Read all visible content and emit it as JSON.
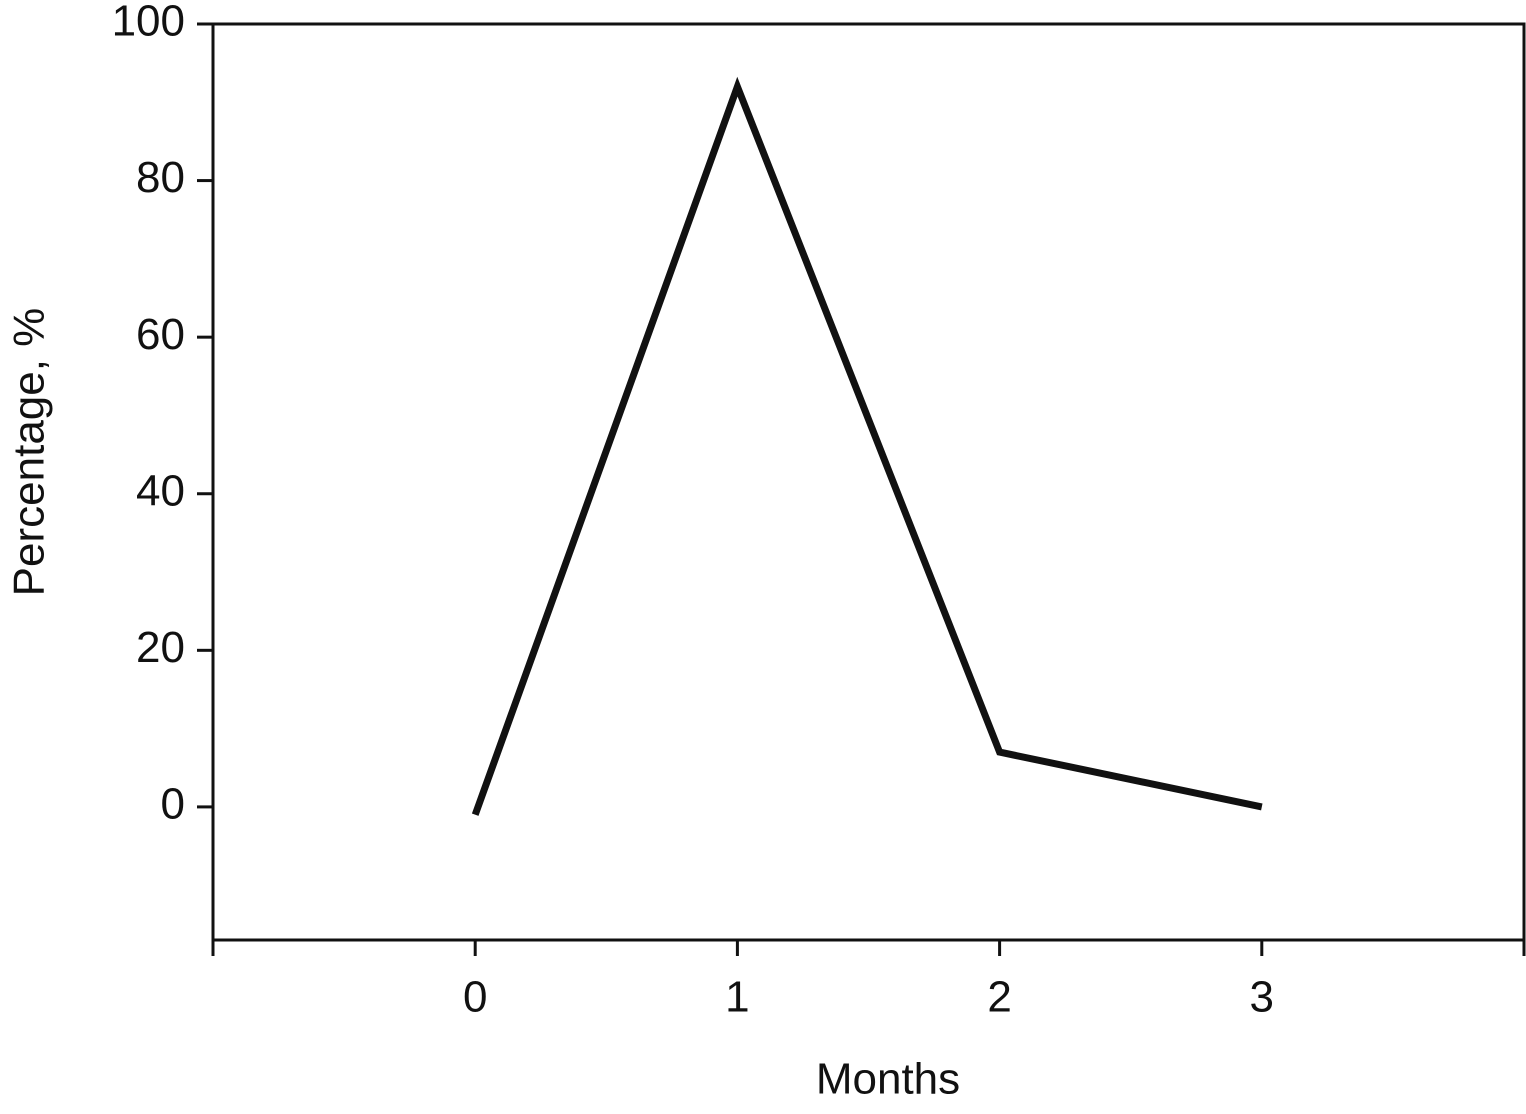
{
  "chart_data": {
    "type": "line",
    "x_label": "Months",
    "y_label": "Percentage, %",
    "x": [
      0,
      1,
      2,
      3
    ],
    "series": [
      {
        "name": "Percentage",
        "color": "#111111",
        "values": [
          -1,
          92,
          7,
          0
        ]
      }
    ],
    "xlim": [
      -1,
      4
    ],
    "xticks": [
      0,
      1,
      2,
      3
    ],
    "ylim": [
      -17,
      100
    ],
    "yticks": [
      0,
      20,
      40,
      60,
      80,
      100
    ],
    "grid": false
  }
}
